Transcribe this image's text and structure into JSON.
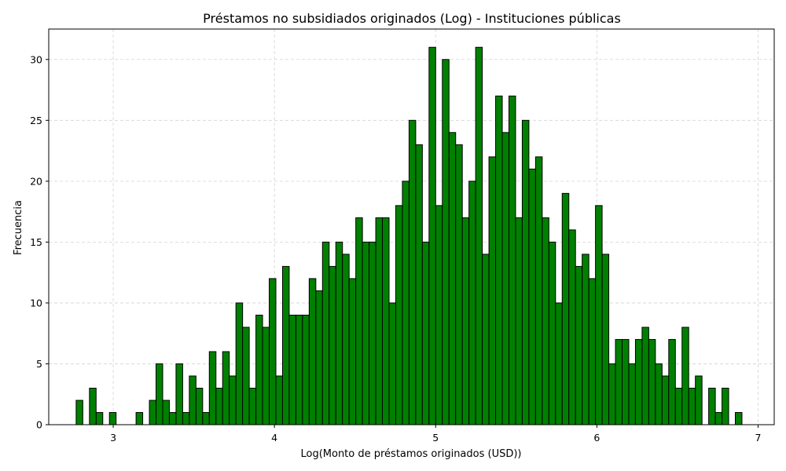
{
  "chart_data": {
    "type": "bar",
    "title": "Préstamos no subsidiados originados (Log) - Instituciones públicas",
    "xlabel": "Log(Monto de préstamos originados (USD))",
    "ylabel": "Frecuencia",
    "xlim": [
      2.6,
      7.1
    ],
    "ylim": [
      0,
      32.5
    ],
    "xticks": [
      3,
      4,
      5,
      6,
      7
    ],
    "yticks": [
      0,
      5,
      10,
      15,
      20,
      25,
      30
    ],
    "grid": true,
    "bar_color": "#008000",
    "edge_color": "#000000",
    "bin_start": 2.77,
    "bin_width": 0.0413,
    "values": [
      2,
      0,
      3,
      1,
      0,
      1,
      0,
      0,
      0,
      1,
      0,
      2,
      5,
      2,
      1,
      5,
      1,
      4,
      3,
      1,
      6,
      3,
      6,
      4,
      10,
      8,
      3,
      9,
      8,
      12,
      4,
      13,
      9,
      9,
      9,
      12,
      11,
      15,
      13,
      15,
      14,
      12,
      17,
      15,
      15,
      17,
      17,
      10,
      18,
      20,
      25,
      23,
      15,
      31,
      18,
      30,
      24,
      23,
      17,
      20,
      31,
      14,
      22,
      27,
      24,
      27,
      17,
      25,
      21,
      22,
      17,
      15,
      10,
      19,
      16,
      13,
      14,
      12,
      18,
      14,
      5,
      7,
      7,
      5,
      7,
      8,
      7,
      5,
      4,
      7,
      3,
      8,
      3,
      4,
      0,
      3,
      1,
      3,
      0,
      1
    ]
  }
}
